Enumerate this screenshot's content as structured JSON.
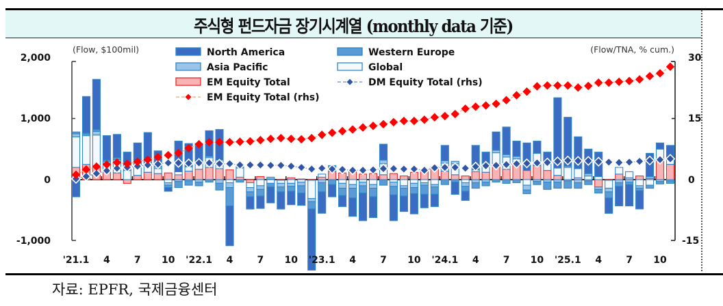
{
  "header": {
    "title": "주식형 펀드자금 장기시계열 (monthly data 기준)"
  },
  "footer": {
    "source": "자료: EPFR,  국제금융센터"
  },
  "colors": {
    "north_america": "#3a6cc4",
    "western_europe": "#5b9bd5",
    "asia_pacific": "#9dc3e6",
    "global": "#f4f9fd",
    "em_equity_total": "#f8b4b4",
    "em_line": "#ff0000",
    "dm_line": "#2f55a4",
    "bar_edge": "#2e86c8"
  },
  "chart_data": {
    "type": "bar",
    "title": "주식형 펀드자금 장기시계열 (monthly data 기준)",
    "ylabel_left": "(Flow, $100mil)",
    "ylabel_right": "(Flow/TNA, % cum.)",
    "ylim_left": [
      -1000,
      2000
    ],
    "ylim_right": [
      -15,
      30
    ],
    "yticks_left": [
      "2,000",
      "1,000",
      "0",
      "-1,000"
    ],
    "yticks_right": [
      "30",
      "15",
      "0",
      "-15"
    ],
    "xtick_labels": [
      "'21.1",
      "4",
      "7",
      "10",
      "'22.1",
      "4",
      "7",
      "10",
      "'23.1",
      "4",
      "7",
      "10",
      "'24.1",
      "4",
      "7",
      "10",
      "'25.1",
      "4",
      "7",
      "10"
    ],
    "legend": [
      {
        "label": "North America",
        "kind": "bar",
        "key": "north_america"
      },
      {
        "label": "Western Europe",
        "kind": "bar",
        "key": "western_europe"
      },
      {
        "label": "Asia Pacific",
        "kind": "bar",
        "key": "asia_pacific"
      },
      {
        "label": "Global",
        "kind": "bar",
        "key": "global"
      },
      {
        "label": "EM Equity Total",
        "kind": "bar",
        "key": "em_equity_total"
      },
      {
        "label": "DM Equity Total (rhs)",
        "kind": "line",
        "key": "dm_line"
      },
      {
        "label": "EM Equity Total (rhs)",
        "kind": "line",
        "key": "em_line"
      }
    ],
    "months": [
      "2021.1",
      "2021.2",
      "2021.3",
      "2021.4",
      "2021.5",
      "2021.6",
      "2021.7",
      "2021.8",
      "2021.9",
      "2021.10",
      "2021.11",
      "2021.12",
      "2022.1",
      "2022.2",
      "2022.3",
      "2022.4",
      "2022.5",
      "2022.6",
      "2022.7",
      "2022.8",
      "2022.9",
      "2022.10",
      "2022.11",
      "2022.12",
      "2023.1",
      "2023.2",
      "2023.3",
      "2023.4",
      "2023.5",
      "2023.6",
      "2023.7",
      "2023.8",
      "2023.9",
      "2023.10",
      "2023.11",
      "2023.12",
      "2024.1",
      "2024.2",
      "2024.3",
      "2024.4",
      "2024.5",
      "2024.6",
      "2024.7",
      "2024.8",
      "2024.9",
      "2024.10",
      "2024.11",
      "2024.12",
      "2025.1",
      "2025.2",
      "2025.3",
      "2025.4",
      "2025.5",
      "2025.6",
      "2025.7",
      "2025.8",
      "2025.9",
      "2025.10",
      "2025.11"
    ],
    "series": [
      {
        "name": "EM Equity Total",
        "key": "em_equity_total",
        "values": [
          200,
          250,
          230,
          120,
          110,
          -60,
          70,
          120,
          100,
          110,
          80,
          140,
          170,
          200,
          180,
          160,
          40,
          -50,
          50,
          10,
          -10,
          30,
          10,
          -10,
          40,
          130,
          110,
          140,
          90,
          100,
          80,
          100,
          60,
          120,
          150,
          210,
          140,
          80,
          60,
          130,
          120,
          260,
          170,
          240,
          150,
          230,
          150,
          70,
          -20,
          30,
          -20,
          -120,
          -10,
          90,
          30,
          60,
          20,
          300,
          250
        ]
      },
      {
        "name": "Global",
        "key": "global",
        "values": [
          500,
          470,
          500,
          150,
          170,
          150,
          150,
          160,
          80,
          -50,
          50,
          70,
          80,
          160,
          140,
          -50,
          150,
          -80,
          -100,
          -60,
          -50,
          -60,
          -40,
          -300,
          50,
          80,
          -60,
          -80,
          -40,
          -80,
          180,
          -40,
          -100,
          -60,
          -50,
          -80,
          130,
          180,
          -50,
          30,
          150,
          180,
          200,
          100,
          -90,
          200,
          120,
          120,
          200,
          150,
          60,
          50,
          -130,
          110,
          100,
          -100,
          -90,
          200,
          110
        ]
      },
      {
        "name": "Asia Pacific",
        "key": "asia_pacific",
        "values": [
          50,
          20,
          60,
          30,
          50,
          60,
          20,
          30,
          30,
          -40,
          -30,
          -20,
          -40,
          20,
          -60,
          -80,
          20,
          -70,
          -60,
          30,
          -60,
          -50,
          -60,
          -50,
          -50,
          20,
          -80,
          -60,
          -60,
          -60,
          60,
          -70,
          -40,
          -70,
          -40,
          -40,
          40,
          40,
          -60,
          -50,
          -40,
          40,
          40,
          40,
          -80,
          -30,
          -40,
          -40,
          20,
          -50,
          40,
          -40,
          -60,
          -50,
          -40,
          -40,
          30,
          -30,
          -20
        ]
      },
      {
        "name": "Western Europe",
        "key": "western_europe",
        "values": [
          30,
          20,
          30,
          20,
          30,
          40,
          30,
          40,
          60,
          -40,
          -100,
          -70,
          -60,
          -40,
          -110,
          -300,
          -40,
          -80,
          -110,
          -60,
          -80,
          -80,
          -120,
          -120,
          -150,
          -80,
          -120,
          -160,
          -120,
          -140,
          -90,
          -140,
          -130,
          -100,
          -150,
          -120,
          -80,
          -40,
          -80,
          -90,
          -60,
          -40,
          -60,
          -50,
          -60,
          -50,
          -120,
          -100,
          -120,
          -90,
          -60,
          -60,
          -100,
          -60,
          -40,
          -40,
          -50,
          -40,
          -40
        ]
      },
      {
        "name": "North America",
        "key": "north_america",
        "values": [
          -280,
          600,
          820,
          400,
          380,
          200,
          330,
          420,
          200,
          -60,
          500,
          380,
          340,
          420,
          500,
          -650,
          0,
          -200,
          -200,
          -260,
          -280,
          -220,
          -200,
          -1000,
          -350,
          -200,
          -180,
          -300,
          -450,
          -340,
          260,
          -420,
          -250,
          -330,
          -220,
          -200,
          250,
          -200,
          -150,
          400,
          180,
          300,
          450,
          250,
          450,
          200,
          180,
          1150,
          800,
          520,
          400,
          400,
          -250,
          -320,
          -350,
          -300,
          380,
          100,
          200
        ]
      },
      {
        "name": "DM Equity Total (rhs)",
        "key": "dm_line",
        "kind": "line",
        "values": [
          0.2,
          0.8,
          1.5,
          2.2,
          2.8,
          3.0,
          3.3,
          3.6,
          3.8,
          4.1,
          4.1,
          4.0,
          4.1,
          4.1,
          3.9,
          3.9,
          3.6,
          3.6,
          3.6,
          3.5,
          3.5,
          3.3,
          3.0,
          2.6,
          2.8,
          2.6,
          2.5,
          2.3,
          2.3,
          2.4,
          2.7,
          2.7,
          2.6,
          2.6,
          2.3,
          2.9,
          3.0,
          3.0,
          2.8,
          3.2,
          3.4,
          3.5,
          3.7,
          3.9,
          4.0,
          4.1,
          4.2,
          4.5,
          4.7,
          4.6,
          4.6,
          4.4,
          4.3,
          4.2,
          4.3,
          4.5,
          4.7,
          4.9,
          5.1
        ]
      },
      {
        "name": "EM Equity Total (rhs)",
        "key": "em_line",
        "kind": "line",
        "values": [
          1.2,
          2.5,
          3.2,
          3.7,
          4.2,
          3.9,
          4.4,
          4.9,
          5.5,
          6.0,
          6.5,
          7.7,
          8.7,
          9.2,
          9.2,
          9.2,
          9.3,
          9.4,
          9.7,
          10.0,
          10.2,
          10.0,
          9.9,
          10.2,
          11.0,
          11.5,
          11.9,
          12.3,
          12.8,
          13.2,
          13.6,
          14.1,
          14.4,
          14.4,
          14.7,
          15.3,
          15.6,
          16.1,
          17.4,
          17.9,
          18.2,
          18.6,
          19.5,
          20.7,
          21.6,
          22.9,
          23.1,
          23.1,
          23.1,
          22.6,
          23.0,
          23.8,
          23.8,
          24.0,
          24.2,
          24.6,
          25.4,
          26.1,
          27.7
        ]
      }
    ]
  }
}
